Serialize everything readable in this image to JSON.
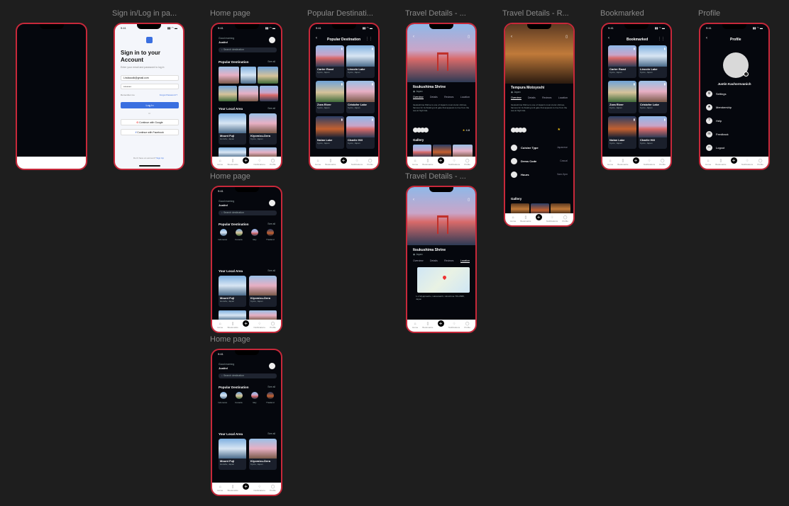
{
  "frames": {
    "blank": {
      "label": ""
    },
    "signin": {
      "label": "Sign in/Log in pa..."
    },
    "home1": {
      "label": "Home page"
    },
    "home2": {
      "label": "Home page"
    },
    "home3": {
      "label": "Home page"
    },
    "popular": {
      "label": "Popular Destinati..."
    },
    "details1": {
      "label": "Travel Details - ..."
    },
    "details2": {
      "label": "Travel Details - ..."
    },
    "restaurant": {
      "label": "Travel Details - R..."
    },
    "bookmarked": {
      "label": "Bookmarked"
    },
    "profile": {
      "label": "Profile"
    }
  },
  "status": {
    "time": "9:41",
    "icons": "▮▮ ◠ ▬"
  },
  "signin": {
    "title": "Sign in to your Account",
    "subtitle": "Enter your email and password to log in",
    "email": "Lindaoodk@gmail.com",
    "password": "*******",
    "remember": "Remember me",
    "forgot": "Forgot Password ?",
    "login": "Log In",
    "or": "Or",
    "google": "Continue with Google",
    "facebook": "Continue with Facebook",
    "noaccount": "Don't have an account?",
    "signup": "Sign Up"
  },
  "home": {
    "greeting": "Good morning",
    "user": "Justin!",
    "search_placeholder": "Search destination",
    "popular": "Popular Destination",
    "see_all": "See all",
    "local": "Your Local Area",
    "countries": [
      "Indonesia",
      "Canada",
      "Italy",
      "Thailand"
    ],
    "local_items": [
      {
        "name": "Mount Fuji",
        "loc": "Honshu, Japan"
      },
      {
        "name": "Kiyomizu-Dera",
        "loc": "Kyoto, Japan"
      }
    ]
  },
  "popular_page": {
    "title": "Popular Destination",
    "items": [
      {
        "name": "Carter Road",
        "loc": "Kyoto, Japan"
      },
      {
        "name": "Lincoln Lake",
        "loc": "Kyoto, Japan"
      },
      {
        "name": "Zora River",
        "loc": "Kyoto, Japan"
      },
      {
        "name": "Cristofer Lake",
        "loc": "Kyoto, Japan"
      },
      {
        "name": "Nolan Lake",
        "loc": "Kyoto, Japan"
      },
      {
        "name": "Charlie Hill",
        "loc": "Kyoto, Japan"
      }
    ]
  },
  "details": {
    "title": "Itsukushima Shrine",
    "country": "Japan",
    "tabs": [
      "Overview",
      "Details",
      "Reviews",
      "Location"
    ],
    "rating": "4.8",
    "gallery": "Gallery",
    "address": "1-1 Miyajimacho, Hatsukaichi, Hiroshima 739-0588, Japan",
    "desc": "Itsukushima Shrine is one of Japan's most iconic shrines, famous for its floating torii gate that appears to rise from the sea at high tide."
  },
  "restaurant": {
    "title": "Tempura Motoyoshi",
    "country": "Japan",
    "tabs": [
      "Overview",
      "Details",
      "Reviews",
      "Location"
    ],
    "rows": [
      {
        "label": "Cuisine Type",
        "value": "Japanese"
      },
      {
        "label": "Dress Code",
        "value": "Casual"
      },
      {
        "label": "Hours",
        "value": "9am-9pm"
      }
    ],
    "gallery": "Gallery"
  },
  "bookmarked": {
    "title": "Bookmarked"
  },
  "profile": {
    "title": "Profile",
    "name": "Justin Kachornvanich",
    "menu": [
      "Settings",
      "Membership",
      "Help",
      "Feedback",
      "Logout"
    ]
  },
  "tabbar": [
    "Home",
    "Bookmarks",
    "Add",
    "Notifications",
    "Profile"
  ]
}
